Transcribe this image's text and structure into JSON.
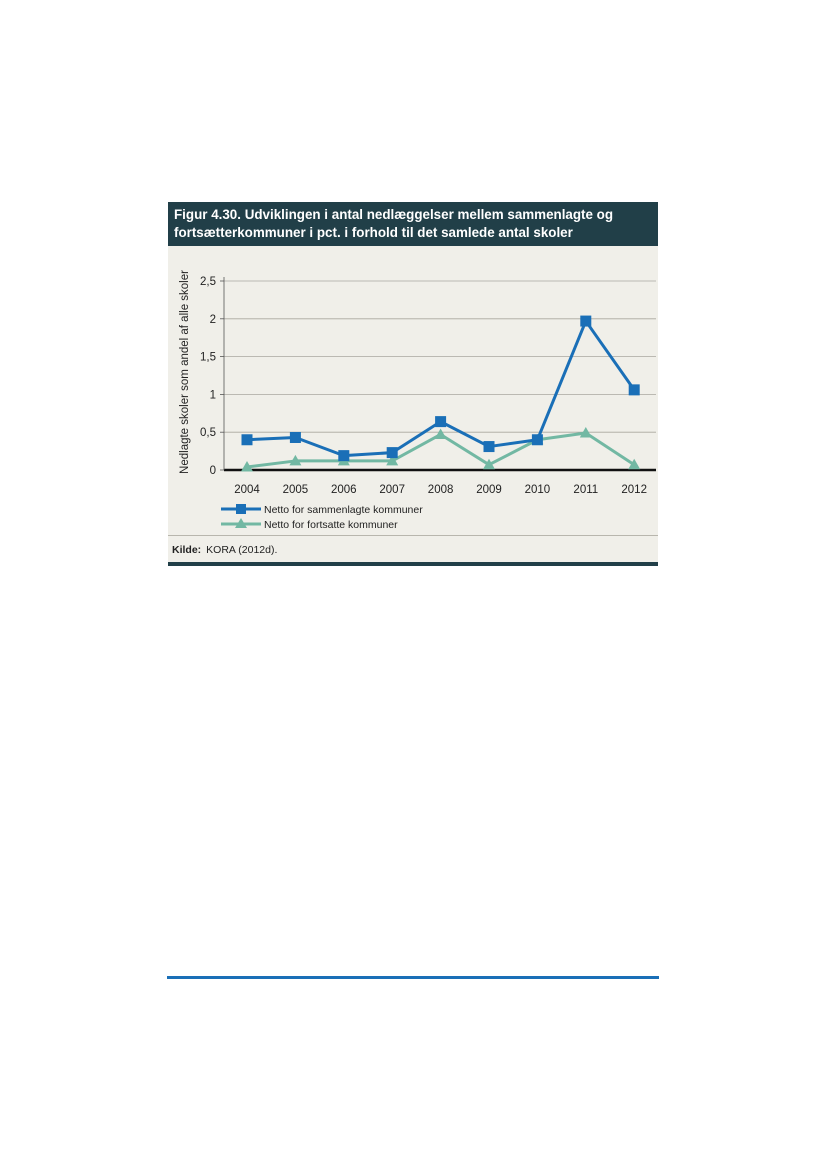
{
  "figure": {
    "title_line1": "Figur 4.30. Udviklingen i antal nedlæggelser mellem sammenlagte og",
    "title_line2": "fortsætterkommuner i pct. i forhold til det samlede antal skoler",
    "source_label": "Kilde:",
    "source_text": "KORA (2012d)."
  },
  "colors": {
    "header_bg": "#213f48",
    "panel_bg": "#f0efe9",
    "series_1": "#1a6fb7",
    "series_2": "#72b8a3",
    "footer_rule": "#1a6fb7"
  },
  "chart_data": {
    "type": "line",
    "x": [
      "2004",
      "2005",
      "2006",
      "2007",
      "2008",
      "2009",
      "2010",
      "2011",
      "2012"
    ],
    "ylabel": "Nedlagte skoler som andel af alle skoler",
    "xlabel": "",
    "ylim": [
      0,
      2.5
    ],
    "yticks": [
      0,
      0.5,
      1,
      1.5,
      2,
      2.5
    ],
    "ytick_labels": [
      "0",
      "0,5",
      "1",
      "1,5",
      "2",
      "2,5"
    ],
    "grid": true,
    "legend_position": "bottom-left",
    "series": [
      {
        "name": "Netto for sammenlagte kommuner",
        "marker": "square",
        "values": [
          0.4,
          0.43,
          0.19,
          0.23,
          0.64,
          0.31,
          0.4,
          1.97,
          1.06
        ]
      },
      {
        "name": "Netto for fortsatte kommuner",
        "marker": "triangle",
        "values": [
          0.04,
          0.12,
          0.12,
          0.12,
          0.47,
          0.07,
          0.4,
          0.49,
          0.07
        ]
      }
    ]
  }
}
